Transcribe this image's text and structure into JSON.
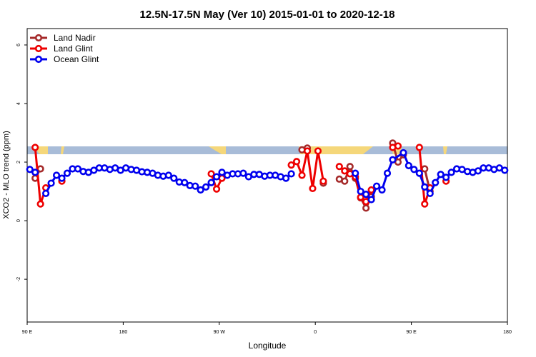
{
  "chart_data": {
    "type": "line",
    "title": "12.5N-17.5N May (Ver 10)   2015-01-01 to 2020-12-18",
    "x_label": "Longitude",
    "y_label": "XCO2 - MLO trend (ppm)",
    "xlim": [
      90,
      540
    ],
    "ylim": [
      -3.46,
      6.56
    ],
    "xticks": [
      {
        "value": 90,
        "label": "90 E"
      },
      {
        "value": 180,
        "label": "180"
      },
      {
        "value": 270,
        "label": "90 W"
      },
      {
        "value": 360,
        "label": "0"
      },
      {
        "value": 450,
        "label": "90 E"
      },
      {
        "value": 540,
        "label": "180"
      }
    ],
    "yticks": [
      -2,
      0,
      2,
      4,
      6
    ],
    "legend": "topleft",
    "series": [
      {
        "name": "Land Nadir",
        "color": "#a52a2a",
        "x": [
          97.5,
          102.5,
          null,
          347.5,
          352.5,
          null,
          367.5,
          null,
          382.5,
          387.5,
          392.5,
          397.5,
          402.5,
          407.5,
          412.5,
          null,
          432.5,
          437.5,
          442.5,
          null,
          462.5,
          467.5
        ],
        "values": [
          1.45,
          1.77,
          null,
          2.42,
          2.48,
          null,
          1.28,
          null,
          1.42,
          1.35,
          1.85,
          1.45,
          0.78,
          0.43,
          0.82,
          null,
          2.65,
          2.0,
          2.25,
          null,
          1.77,
          1.0
        ]
      },
      {
        "name": "Land Glint",
        "color": "#ee0000",
        "x": [
          97.5,
          102.5,
          107.5,
          null,
          122.5,
          null,
          262.5,
          267.5,
          272.5,
          null,
          337.5,
          342.5,
          347.5,
          352.5,
          357.5,
          362.5,
          367.5,
          null,
          382.5,
          387.5,
          392.5,
          397.5,
          402.5,
          407.5,
          412.5,
          null,
          432.5,
          437.5,
          null,
          457.5,
          462.5,
          467.5,
          null,
          482.5
        ],
        "values": [
          2.5,
          0.57,
          1.12,
          null,
          1.35,
          null,
          1.6,
          1.08,
          1.45,
          null,
          1.9,
          2.02,
          1.55,
          2.38,
          1.1,
          2.38,
          1.35,
          null,
          1.85,
          1.7,
          1.6,
          1.5,
          0.8,
          0.65,
          1.05,
          null,
          2.5,
          2.55,
          null,
          2.5,
          0.57,
          1.12,
          null,
          1.35
        ]
      },
      {
        "name": "Ocean Glint",
        "color": "#0000ee",
        "x": [
          92.5,
          97.5,
          null,
          107.5,
          112.5,
          117.5,
          122.5,
          127.5,
          132.5,
          137.5,
          142.5,
          147.5,
          152.5,
          157.5,
          162.5,
          167.5,
          172.5,
          177.5,
          182.5,
          187.5,
          192.5,
          197.5,
          202.5,
          207.5,
          212.5,
          217.5,
          222.5,
          227.5,
          232.5,
          237.5,
          242.5,
          247.5,
          252.5,
          257.5,
          262.5,
          267.5,
          272.5,
          277.5,
          282.5,
          287.5,
          292.5,
          297.5,
          302.5,
          307.5,
          312.5,
          317.5,
          322.5,
          327.5,
          332.5,
          337.5,
          null,
          397.5,
          402.5,
          407.5,
          412.5,
          417.5,
          422.5,
          427.5,
          432.5,
          442.5,
          447.5,
          452.5,
          457.5,
          462.5,
          467.5,
          472.5,
          477.5,
          482.5,
          487.5,
          492.5,
          497.5,
          502.5,
          507.5,
          512.5,
          517.5,
          522.5,
          527.5,
          532.5,
          537.5
        ],
        "values": [
          1.75,
          1.65,
          null,
          0.93,
          1.28,
          1.55,
          1.45,
          1.62,
          1.77,
          1.77,
          1.68,
          1.65,
          1.72,
          1.8,
          1.8,
          1.75,
          1.8,
          1.72,
          1.8,
          1.75,
          1.72,
          1.67,
          1.65,
          1.62,
          1.55,
          1.52,
          1.55,
          1.45,
          1.32,
          1.3,
          1.2,
          1.18,
          1.05,
          1.15,
          1.3,
          1.5,
          1.65,
          1.55,
          1.6,
          1.6,
          1.62,
          1.5,
          1.58,
          1.58,
          1.52,
          1.55,
          1.55,
          1.5,
          1.45,
          1.6,
          null,
          1.62,
          1.0,
          0.9,
          0.72,
          1.18,
          1.05,
          1.62,
          2.08,
          2.32,
          1.88,
          1.75,
          1.62,
          1.15,
          0.93,
          1.3,
          1.58,
          1.48,
          1.65,
          1.77,
          1.75,
          1.68,
          1.65,
          1.7,
          1.8,
          1.8,
          1.75,
          1.8,
          1.72
        ]
      }
    ]
  }
}
